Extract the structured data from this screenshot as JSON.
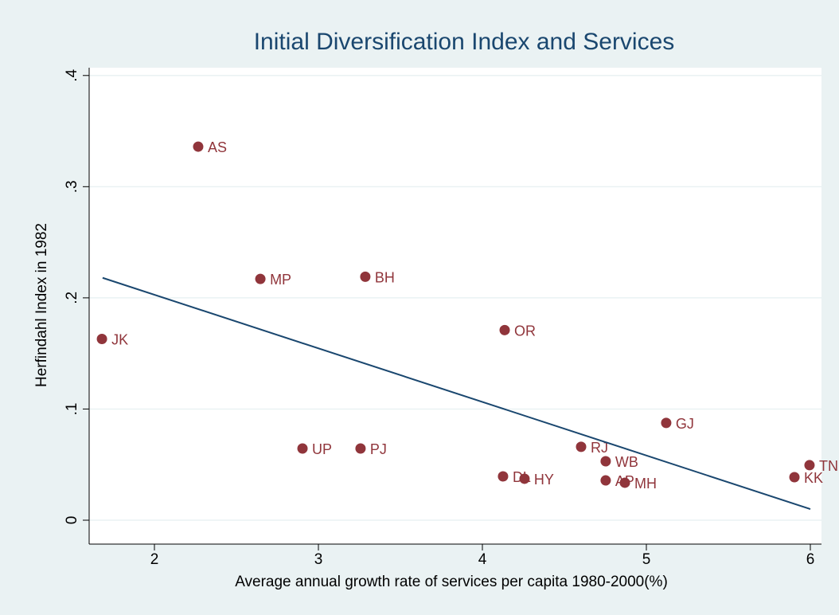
{
  "chart_data": {
    "type": "scatter",
    "title": "Initial Diversification Index and Services",
    "xlabel": "Average annual growth rate of services per capita 1980-2000(%)",
    "ylabel": "Herfindahl Index in 1982",
    "labels": [
      "AS",
      "MP",
      "BH",
      "JK",
      "OR",
      "GJ",
      "UP",
      "PJ",
      "RJ",
      "WB",
      "TN",
      "KK",
      "DL",
      "HY",
      "AP",
      "MH"
    ],
    "x": [
      2.267,
      2.646,
      3.286,
      1.68,
      4.136,
      5.121,
      2.903,
      3.257,
      4.602,
      4.752,
      5.995,
      5.903,
      4.126,
      4.257,
      4.752,
      4.869
    ],
    "values": [
      0.336,
      0.217,
      0.219,
      0.163,
      0.171,
      0.0875,
      0.0645,
      0.0645,
      0.066,
      0.053,
      0.0495,
      0.0387,
      0.0394,
      0.0373,
      0.0358,
      0.0337
    ],
    "color": "#90353b",
    "fit": {
      "x": [
        1.684,
        6
      ],
      "values": [
        0.218,
        0.01
      ],
      "color": "#1a476f"
    },
    "xlim": [
      1.602,
      6.068
    ],
    "ylim": [
      -0.0215,
      0.407
    ],
    "xticks": [
      2,
      3,
      4,
      5,
      6
    ],
    "yticks": [
      0,
      {
        "value": 0.1,
        "label": ".1"
      },
      {
        "value": 0.2,
        "label": ".2"
      },
      {
        "value": 0.3,
        "label": ".3"
      },
      {
        "value": 0.4,
        "label": ".4"
      }
    ],
    "grid": true
  }
}
